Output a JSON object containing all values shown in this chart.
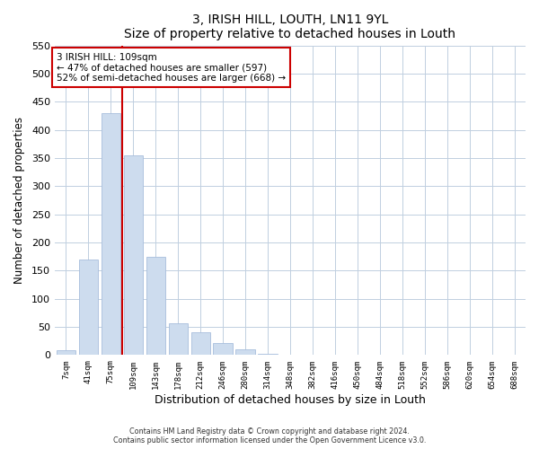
{
  "title": "3, IRISH HILL, LOUTH, LN11 9YL",
  "subtitle": "Size of property relative to detached houses in Louth",
  "xlabel": "Distribution of detached houses by size in Louth",
  "ylabel": "Number of detached properties",
  "bar_labels": [
    "7sqm",
    "41sqm",
    "75sqm",
    "109sqm",
    "143sqm",
    "178sqm",
    "212sqm",
    "246sqm",
    "280sqm",
    "314sqm",
    "348sqm",
    "382sqm",
    "416sqm",
    "450sqm",
    "484sqm",
    "518sqm",
    "552sqm",
    "586sqm",
    "620sqm",
    "654sqm",
    "688sqm"
  ],
  "bar_values": [
    8,
    170,
    430,
    355,
    175,
    57,
    40,
    22,
    10,
    2,
    0,
    0,
    0,
    0,
    0,
    0,
    1,
    0,
    0,
    0,
    1
  ],
  "bar_color": "#cddcee",
  "bar_edge_color": "#a8bedc",
  "vline_x": 2.5,
  "vline_color": "#cc0000",
  "annotation_text": "3 IRISH HILL: 109sqm\n← 47% of detached houses are smaller (597)\n52% of semi-detached houses are larger (668) →",
  "annotation_box_color": "#ffffff",
  "annotation_box_edge_color": "#cc0000",
  "ylim": [
    0,
    550
  ],
  "yticks": [
    0,
    50,
    100,
    150,
    200,
    250,
    300,
    350,
    400,
    450,
    500,
    550
  ],
  "footer_line1": "Contains HM Land Registry data © Crown copyright and database right 2024.",
  "footer_line2": "Contains public sector information licensed under the Open Government Licence v3.0.",
  "background_color": "#ffffff",
  "grid_color": "#c0cfe0"
}
